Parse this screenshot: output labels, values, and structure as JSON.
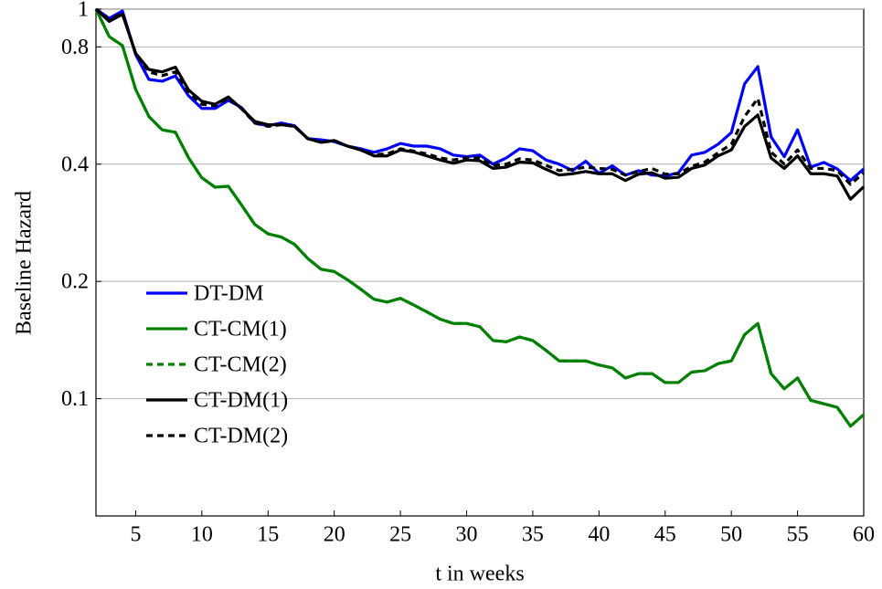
{
  "chart_data": {
    "type": "line",
    "xlabel": "t in weeks",
    "ylabel": "Baseline Hazard",
    "x": [
      2,
      3,
      4,
      5,
      6,
      7,
      8,
      9,
      10,
      11,
      12,
      13,
      14,
      15,
      16,
      17,
      18,
      19,
      20,
      21,
      22,
      23,
      24,
      25,
      26,
      27,
      28,
      29,
      30,
      31,
      32,
      33,
      34,
      35,
      36,
      37,
      38,
      39,
      40,
      41,
      42,
      43,
      44,
      45,
      46,
      47,
      48,
      49,
      50,
      51,
      52,
      53,
      54,
      55,
      56,
      57,
      58,
      59,
      60
    ],
    "series": [
      {
        "name": "DT-DM",
        "color": "#0000ff",
        "dashed": false,
        "values": [
          1.0,
          0.947,
          0.989,
          0.764,
          0.66,
          0.653,
          0.674,
          0.599,
          0.556,
          0.556,
          0.583,
          0.559,
          0.51,
          0.502,
          0.51,
          0.502,
          0.465,
          0.462,
          0.457,
          0.445,
          0.438,
          0.429,
          0.438,
          0.452,
          0.445,
          0.445,
          0.438,
          0.422,
          0.418,
          0.422,
          0.4,
          0.415,
          0.438,
          0.433,
          0.41,
          0.4,
          0.385,
          0.407,
          0.379,
          0.396,
          0.375,
          0.385,
          0.375,
          0.373,
          0.38,
          0.422,
          0.429,
          0.45,
          0.482,
          0.643,
          0.712,
          0.47,
          0.418,
          0.49,
          0.393,
          0.404,
          0.389,
          0.363,
          0.389
        ]
      },
      {
        "name": "CT-CM(1)",
        "color": "#008000",
        "dashed": false,
        "values": [
          1.0,
          0.85,
          0.806,
          0.622,
          0.53,
          0.49,
          0.483,
          0.415,
          0.369,
          0.349,
          0.351,
          0.314,
          0.28,
          0.265,
          0.26,
          0.249,
          0.229,
          0.215,
          0.212,
          0.202,
          0.191,
          0.18,
          0.177,
          0.181,
          0.174,
          0.167,
          0.16,
          0.156,
          0.156,
          0.153,
          0.141,
          0.14,
          0.144,
          0.141,
          0.133,
          0.125,
          0.125,
          0.125,
          0.122,
          0.12,
          0.113,
          0.116,
          0.116,
          0.11,
          0.11,
          0.117,
          0.118,
          0.123,
          0.125,
          0.146,
          0.156,
          0.116,
          0.106,
          0.113,
          0.099,
          0.097,
          0.095,
          0.085,
          0.091
        ]
      },
      {
        "name": "CT-CM(2)",
        "color": "#008000",
        "dashed": true,
        "values": [
          1.0,
          0.85,
          0.806,
          0.622,
          0.53,
          0.49,
          0.483,
          0.415,
          0.369,
          0.349,
          0.351,
          0.314,
          0.28,
          0.265,
          0.26,
          0.249,
          0.229,
          0.215,
          0.212,
          0.202,
          0.191,
          0.18,
          0.177,
          0.181,
          0.174,
          0.167,
          0.16,
          0.156,
          0.156,
          0.153,
          0.141,
          0.14,
          0.144,
          0.141,
          0.133,
          0.125,
          0.125,
          0.125,
          0.122,
          0.12,
          0.113,
          0.116,
          0.116,
          0.11,
          0.11,
          0.117,
          0.118,
          0.123,
          0.125,
          0.146,
          0.156,
          0.116,
          0.106,
          0.113,
          0.099,
          0.097,
          0.095,
          0.085,
          0.091
        ]
      },
      {
        "name": "CT-DM(1)",
        "color": "#000000",
        "dashed": false,
        "values": [
          1.0,
          0.93,
          0.97,
          0.77,
          0.7,
          0.69,
          0.71,
          0.62,
          0.58,
          0.57,
          0.595,
          0.555,
          0.515,
          0.505,
          0.505,
          0.5,
          0.465,
          0.455,
          0.46,
          0.445,
          0.435,
          0.42,
          0.42,
          0.435,
          0.43,
          0.42,
          0.41,
          0.402,
          0.41,
          0.408,
          0.39,
          0.393,
          0.405,
          0.403,
          0.388,
          0.375,
          0.378,
          0.383,
          0.378,
          0.378,
          0.363,
          0.377,
          0.38,
          0.368,
          0.37,
          0.39,
          0.398,
          0.42,
          0.435,
          0.5,
          0.535,
          0.415,
          0.39,
          0.42,
          0.378,
          0.378,
          0.373,
          0.325,
          0.35
        ]
      },
      {
        "name": "CT-DM(2)",
        "color": "#000000",
        "dashed": true,
        "values": [
          1.0,
          0.94,
          0.975,
          0.77,
          0.69,
          0.675,
          0.69,
          0.61,
          0.57,
          0.565,
          0.59,
          0.555,
          0.51,
          0.5,
          0.505,
          0.5,
          0.465,
          0.455,
          0.46,
          0.445,
          0.435,
          0.423,
          0.425,
          0.438,
          0.432,
          0.425,
          0.415,
          0.41,
          0.415,
          0.415,
          0.397,
          0.4,
          0.413,
          0.41,
          0.397,
          0.385,
          0.388,
          0.393,
          0.39,
          0.388,
          0.375,
          0.383,
          0.39,
          0.377,
          0.378,
          0.395,
          0.405,
          0.428,
          0.45,
          0.53,
          0.59,
          0.43,
          0.4,
          0.435,
          0.39,
          0.39,
          0.385,
          0.355,
          0.38
        ]
      }
    ],
    "xlim": [
      2,
      60
    ],
    "xticks": [
      5,
      10,
      15,
      20,
      25,
      30,
      35,
      40,
      45,
      50,
      55,
      60
    ],
    "ylim": [
      0.05,
      1
    ],
    "yticks": [
      0.1,
      0.2,
      0.4,
      0.8,
      1
    ],
    "ylog": true,
    "grid": true,
    "legend": "left"
  }
}
